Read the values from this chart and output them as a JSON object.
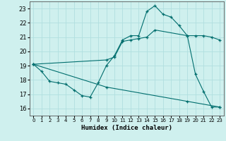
{
  "xlabel": "Humidex (Indice chaleur)",
  "background_color": "#cff0ee",
  "grid_color": "#b0dfdf",
  "line_color": "#006e6e",
  "xlim": [
    -0.5,
    23.5
  ],
  "ylim": [
    15.5,
    23.5
  ],
  "yticks": [
    16,
    17,
    18,
    19,
    20,
    21,
    22,
    23
  ],
  "xticks": [
    0,
    1,
    2,
    3,
    4,
    5,
    6,
    7,
    8,
    9,
    10,
    11,
    12,
    13,
    14,
    15,
    16,
    17,
    18,
    19,
    20,
    21,
    22,
    23
  ],
  "line1_x": [
    0,
    1,
    2,
    3,
    4,
    5,
    6,
    7,
    8,
    9,
    10,
    11,
    12,
    13,
    14,
    15,
    16,
    17,
    18,
    19,
    20,
    21,
    22,
    23
  ],
  "line1_y": [
    19.1,
    18.6,
    17.9,
    17.8,
    17.7,
    17.3,
    16.9,
    16.8,
    17.8,
    19.0,
    19.7,
    20.8,
    21.1,
    21.1,
    22.8,
    23.2,
    22.6,
    22.4,
    21.8,
    21.1,
    18.4,
    17.2,
    16.1,
    16.1
  ],
  "line2_x": [
    0,
    9,
    10,
    11,
    12,
    13,
    14,
    15,
    19,
    20,
    21,
    22,
    23
  ],
  "line2_y": [
    19.1,
    19.4,
    19.6,
    20.7,
    20.8,
    20.9,
    21.0,
    21.5,
    21.1,
    21.1,
    21.1,
    21.0,
    20.8
  ],
  "line3_x": [
    0,
    9,
    19,
    23
  ],
  "line3_y": [
    19.1,
    17.5,
    16.5,
    16.1
  ]
}
